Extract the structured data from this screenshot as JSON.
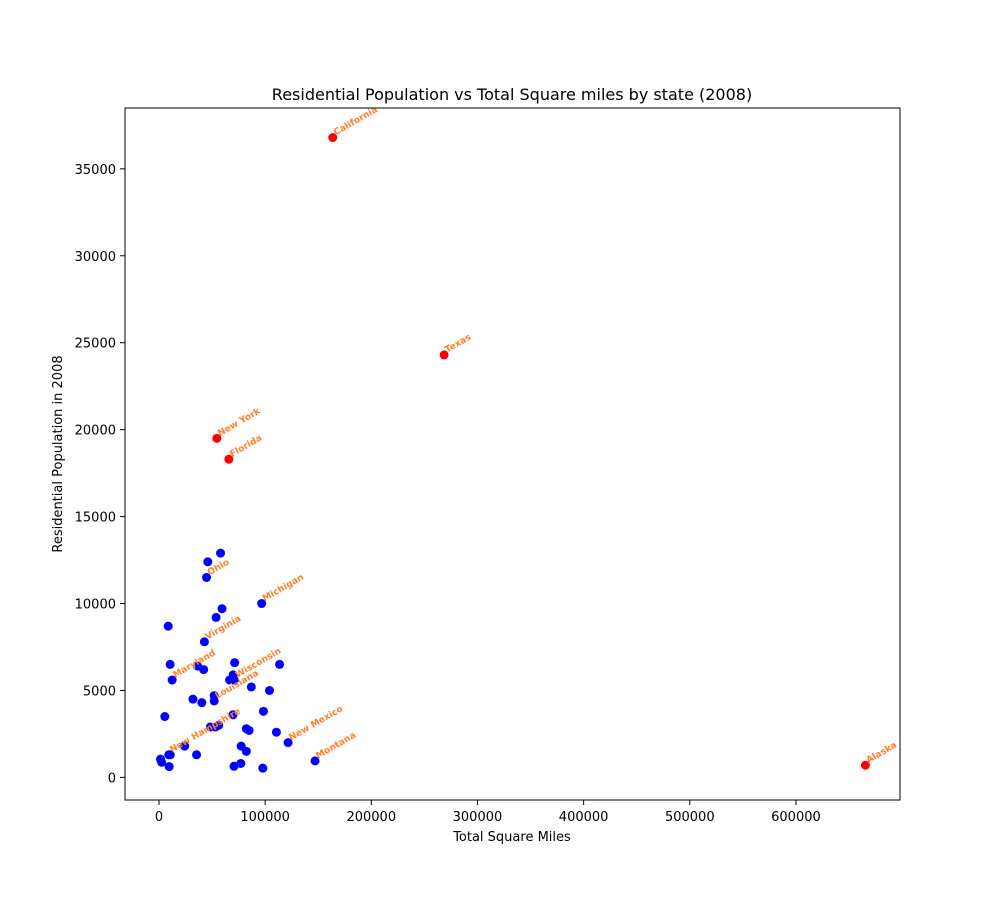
{
  "chart_data": {
    "type": "scatter",
    "title": "Residential Population vs Total Square miles by state (2008)",
    "xlabel": "Total Square Miles",
    "ylabel": "Residential Population in 2008",
    "xlim": [
      -32000,
      698000
    ],
    "ylim": [
      -1300,
      38500
    ],
    "xticks": [
      0,
      100000,
      200000,
      300000,
      400000,
      500000,
      600000
    ],
    "yticks": [
      0,
      5000,
      10000,
      15000,
      20000,
      25000,
      30000,
      35000
    ],
    "grid": false,
    "colors": {
      "highlight": "#ff0000",
      "normal": "#0000ff",
      "label": "#ff7f2a"
    },
    "highlighted": [
      {
        "x": 163700,
        "y": 36800,
        "label": "California"
      },
      {
        "x": 268600,
        "y": 24300,
        "label": "Texas"
      },
      {
        "x": 54500,
        "y": 19500,
        "label": "New York"
      },
      {
        "x": 65800,
        "y": 18300,
        "label": "Florida"
      },
      {
        "x": 665400,
        "y": 700,
        "label": "Alaska"
      }
    ],
    "labeled": [
      {
        "x": 44800,
        "y": 11500,
        "label": "Ohio"
      },
      {
        "x": 96700,
        "y": 10000,
        "label": "Michigan"
      },
      {
        "x": 42800,
        "y": 7800,
        "label": "Virginia"
      },
      {
        "x": 12400,
        "y": 5600,
        "label": "Maryland"
      },
      {
        "x": 71000,
        "y": 5600,
        "label": "Wisconsin"
      },
      {
        "x": 52000,
        "y": 4400,
        "label": "Louisiana"
      },
      {
        "x": 9300,
        "y": 1300,
        "label": "New Hampshire"
      },
      {
        "x": 121600,
        "y": 2000,
        "label": "New Mexico"
      },
      {
        "x": 147000,
        "y": 950,
        "label": "Montana"
      }
    ],
    "points": [
      {
        "x": 46000,
        "y": 12400
      },
      {
        "x": 58000,
        "y": 12900
      },
      {
        "x": 59400,
        "y": 9700
      },
      {
        "x": 53800,
        "y": 9200
      },
      {
        "x": 8700,
        "y": 8700
      },
      {
        "x": 10500,
        "y": 6500
      },
      {
        "x": 36400,
        "y": 6400
      },
      {
        "x": 42100,
        "y": 6200
      },
      {
        "x": 71300,
        "y": 6600
      },
      {
        "x": 113600,
        "y": 6500
      },
      {
        "x": 69900,
        "y": 5900
      },
      {
        "x": 66500,
        "y": 5600
      },
      {
        "x": 87000,
        "y": 5200
      },
      {
        "x": 104100,
        "y": 5000
      },
      {
        "x": 52000,
        "y": 4700
      },
      {
        "x": 32000,
        "y": 4500
      },
      {
        "x": 40400,
        "y": 4300
      },
      {
        "x": 5500,
        "y": 3500
      },
      {
        "x": 69700,
        "y": 3600
      },
      {
        "x": 98400,
        "y": 3800
      },
      {
        "x": 48400,
        "y": 2900
      },
      {
        "x": 53200,
        "y": 2900
      },
      {
        "x": 56300,
        "y": 3000
      },
      {
        "x": 82300,
        "y": 2800
      },
      {
        "x": 84900,
        "y": 2700
      },
      {
        "x": 110600,
        "y": 2600
      },
      {
        "x": 24200,
        "y": 1800
      },
      {
        "x": 77400,
        "y": 1800
      },
      {
        "x": 82300,
        "y": 1500
      },
      {
        "x": 35400,
        "y": 1300
      },
      {
        "x": 10600,
        "y": 1300
      },
      {
        "x": 1500,
        "y": 1050
      },
      {
        "x": 2500,
        "y": 870
      },
      {
        "x": 9600,
        "y": 620
      },
      {
        "x": 70700,
        "y": 640
      },
      {
        "x": 77100,
        "y": 800
      },
      {
        "x": 97800,
        "y": 530
      }
    ]
  }
}
